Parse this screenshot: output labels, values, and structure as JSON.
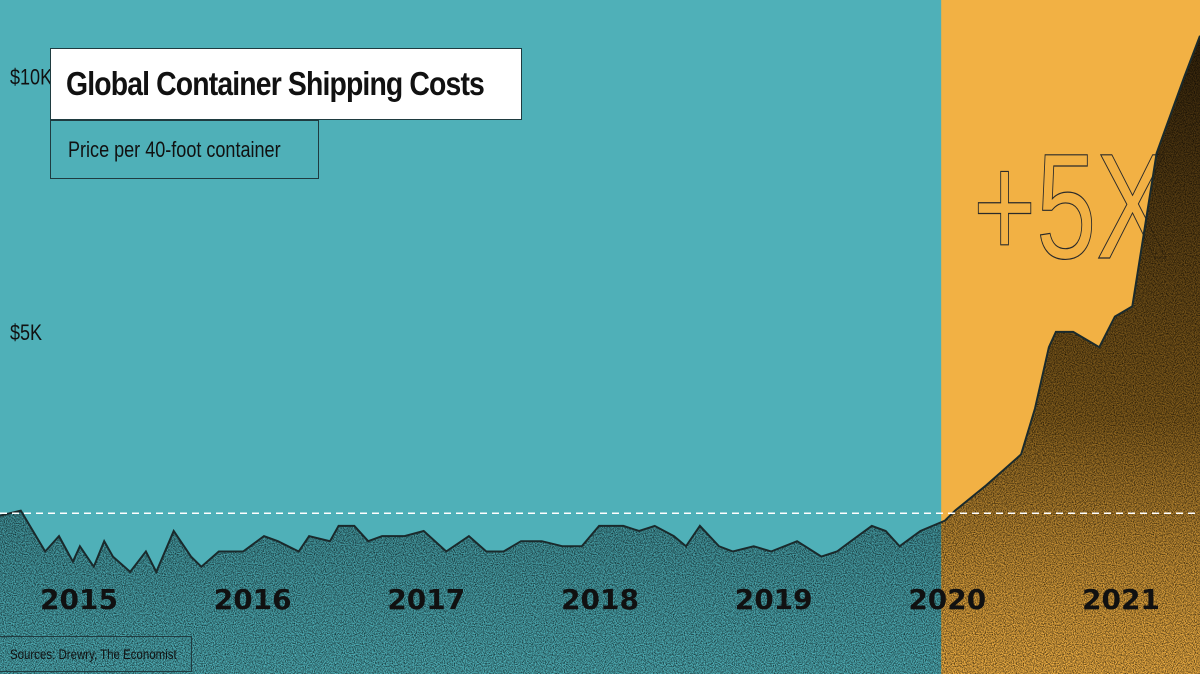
{
  "title": "Global Container Shipping Costs",
  "subtitle": "Price per 40-foot container",
  "source": "Sources: Drewry, The Economist",
  "highlight": {
    "label": "+5X",
    "from_year": 2020.0
  },
  "colors": {
    "background": "#4fb0b8",
    "highlight": "#f2b144",
    "area": "#1c4a50",
    "area_highlight": "#6a4a12",
    "line": "#1a2a2c",
    "text": "#111111"
  },
  "chart_data": {
    "type": "area",
    "title": "Global Container Shipping Costs",
    "subtitle": "Price per 40-foot container",
    "xlabel": "",
    "ylabel": "",
    "x_ticks": [
      2015,
      2016,
      2017,
      2018,
      2019,
      2020,
      2021
    ],
    "x_tick_labels": [
      "2015",
      "2016",
      "2017",
      "2018",
      "2019",
      "2020",
      "2021"
    ],
    "y_ticks": [
      5000,
      10000
    ],
    "y_tick_labels": [
      "$5K",
      "$10K"
    ],
    "xlim": [
      2014.58,
      2021.49
    ],
    "ylim": [
      -1700,
      11500
    ],
    "grid": false,
    "reference_line": {
      "y": 1450,
      "style": "dashed"
    },
    "series": [
      {
        "x": [
          2014.58,
          2014.7,
          2014.84,
          2014.92,
          2015.0,
          2015.04,
          2015.12,
          2015.18,
          2015.23,
          2015.33,
          2015.42,
          2015.48,
          2015.58,
          2015.68,
          2015.74,
          2015.84,
          2015.98,
          2016.1,
          2016.18,
          2016.3,
          2016.36,
          2016.48,
          2016.53,
          2016.62,
          2016.7,
          2016.78,
          2016.91,
          2017.02,
          2017.15,
          2017.28,
          2017.38,
          2017.48,
          2017.58,
          2017.7,
          2017.82,
          2017.93,
          2018.03,
          2018.17,
          2018.26,
          2018.35,
          2018.46,
          2018.53,
          2018.61,
          2018.72,
          2018.8,
          2018.92,
          2019.02,
          2019.17,
          2019.31,
          2019.4,
          2019.48,
          2019.6,
          2019.68,
          2019.76,
          2019.8,
          2019.88,
          2020.02,
          2020.08,
          2020.26,
          2020.46,
          2020.54,
          2020.62,
          2020.66,
          2020.72,
          2020.76,
          2020.91,
          2021.0,
          2021.1,
          2021.24,
          2021.4,
          2021.49
        ],
        "y": [
          1400,
          1500,
          700,
          1000,
          500,
          800,
          400,
          900,
          600,
          300,
          700,
          300,
          1100,
          600,
          400,
          700,
          700,
          1000,
          900,
          700,
          1000,
          900,
          1200,
          1200,
          900,
          1000,
          1000,
          1100,
          700,
          1000,
          700,
          700,
          900,
          900,
          800,
          800,
          1200,
          1200,
          1100,
          1200,
          1000,
          800,
          1200,
          800,
          700,
          800,
          700,
          900,
          600,
          700,
          900,
          1200,
          1100,
          800,
          900,
          1100,
          1300,
          1500,
          2000,
          2600,
          3500,
          4700,
          5000,
          5000,
          5000,
          4700,
          5300,
          5500,
          8500,
          10000,
          10800
        ]
      }
    ]
  }
}
